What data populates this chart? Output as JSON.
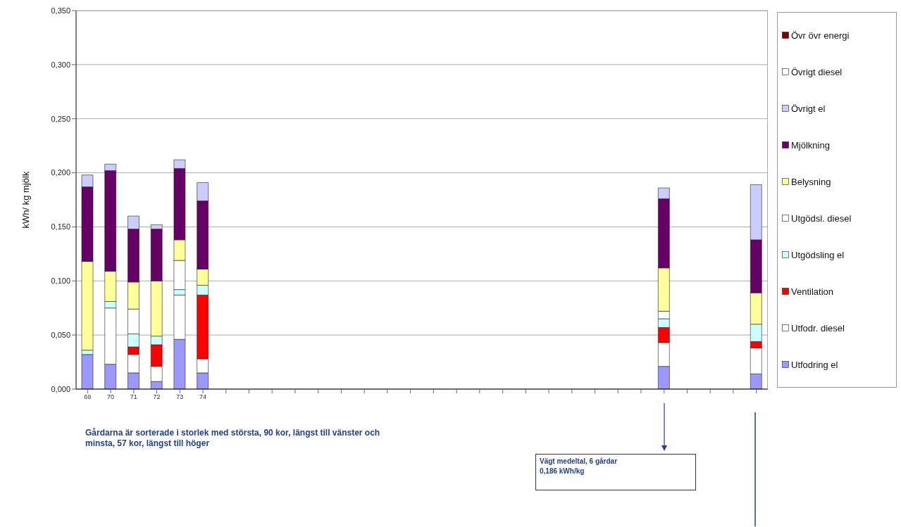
{
  "chart_data": {
    "type": "bar",
    "stacked": true,
    "ylabel": "kWh/ kg mjölk",
    "categories": [
      "69",
      "70",
      "71",
      "72",
      "73",
      "74",
      null,
      null,
      null,
      null,
      null,
      null,
      null,
      null,
      null,
      null,
      null,
      null,
      null,
      null,
      null,
      null,
      null,
      null,
      null,
      null,
      null,
      null,
      null,
      null
    ],
    "series": [
      {
        "name": "Utfodring el",
        "color": "#9999ff",
        "values": [
          0.032,
          0.023,
          0.015,
          0.007,
          0.046,
          0.015,
          null,
          null,
          null,
          null,
          null,
          null,
          null,
          null,
          null,
          null,
          null,
          null,
          null,
          null,
          null,
          null,
          null,
          null,
          null,
          0.021,
          null,
          null,
          null,
          0.014
        ]
      },
      {
        "name": "Utfodr. diesel",
        "color": "#ffffff",
        "values": [
          0,
          0.052,
          0.017,
          0.014,
          0.041,
          0.013,
          null,
          null,
          null,
          null,
          null,
          null,
          null,
          null,
          null,
          null,
          null,
          null,
          null,
          null,
          null,
          null,
          null,
          null,
          null,
          0.022,
          null,
          null,
          null,
          0.024
        ]
      },
      {
        "name": "Ventilation",
        "color": "#ff0000",
        "values": [
          0,
          0,
          0.007,
          0.02,
          0,
          0.059,
          null,
          null,
          null,
          null,
          null,
          null,
          null,
          null,
          null,
          null,
          null,
          null,
          null,
          null,
          null,
          null,
          null,
          null,
          null,
          0.014,
          null,
          null,
          null,
          0.006
        ]
      },
      {
        "name": "Utgödsling el",
        "color": "#ccffff",
        "values": [
          0.004,
          0.006,
          0.012,
          0.008,
          0.005,
          0.009,
          null,
          null,
          null,
          null,
          null,
          null,
          null,
          null,
          null,
          null,
          null,
          null,
          null,
          null,
          null,
          null,
          null,
          null,
          null,
          0.008,
          null,
          null,
          null,
          0.016
        ]
      },
      {
        "name": "Utgödsl. diesel",
        "color": "#ffffff",
        "values": [
          0,
          0,
          0.023,
          0,
          0.027,
          0,
          null,
          null,
          null,
          null,
          null,
          null,
          null,
          null,
          null,
          null,
          null,
          null,
          null,
          null,
          null,
          null,
          null,
          null,
          null,
          0.007,
          null,
          null,
          null,
          0
        ]
      },
      {
        "name": "Belysning",
        "color": "#ffff99",
        "values": [
          0.082,
          0.028,
          0.025,
          0.051,
          0.019,
          0.015,
          null,
          null,
          null,
          null,
          null,
          null,
          null,
          null,
          null,
          null,
          null,
          null,
          null,
          null,
          null,
          null,
          null,
          null,
          null,
          0.04,
          null,
          null,
          null,
          0.029
        ]
      },
      {
        "name": "Mjölkning",
        "color": "#660066",
        "values": [
          0.069,
          0.093,
          0.049,
          0.048,
          0.066,
          0.063,
          null,
          null,
          null,
          null,
          null,
          null,
          null,
          null,
          null,
          null,
          null,
          null,
          null,
          null,
          null,
          null,
          null,
          null,
          null,
          0.064,
          null,
          null,
          null,
          0.049
        ]
      },
      {
        "name": "Övrigt el",
        "color": "#ccccff",
        "values": [
          0.011,
          0.006,
          0.012,
          0.004,
          0.008,
          0.017,
          null,
          null,
          null,
          null,
          null,
          null,
          null,
          null,
          null,
          null,
          null,
          null,
          null,
          null,
          null,
          null,
          null,
          null,
          null,
          0.01,
          null,
          null,
          null,
          0.051
        ]
      },
      {
        "name": "Övrigt diesel",
        "color": "#ffffff",
        "values": [
          0,
          0,
          0,
          0,
          0,
          0,
          null,
          null,
          null,
          null,
          null,
          null,
          null,
          null,
          null,
          null,
          null,
          null,
          null,
          null,
          null,
          null,
          null,
          null,
          null,
          0,
          null,
          null,
          null,
          0
        ]
      },
      {
        "name": "Övr övr energi",
        "color": "#800000",
        "values": [
          0,
          0,
          0,
          0,
          0,
          0,
          null,
          null,
          null,
          null,
          null,
          null,
          null,
          null,
          null,
          null,
          null,
          null,
          null,
          null,
          null,
          null,
          null,
          null,
          null,
          0,
          null,
          null,
          null,
          0
        ]
      }
    ],
    "ylim": [
      0,
      0.35
    ],
    "yticks": [
      {
        "value": 0,
        "label": "0,000"
      },
      {
        "value": 0.05,
        "label": "0,050"
      },
      {
        "value": 0.1,
        "label": "0,100"
      },
      {
        "value": 0.15,
        "label": "0,150"
      },
      {
        "value": 0.2,
        "label": "0,200"
      },
      {
        "value": 0.25,
        "label": "0,250"
      },
      {
        "value": 0.3,
        "label": "0,300"
      },
      {
        "value": 0.35,
        "label": "0,350"
      }
    ],
    "grid": "y",
    "legend": "right",
    "annotations": [
      "Gårdarna är sorterade i storlek med största, 90 kor, längst till vänster och minsta, 57  kor, längst till höger",
      "Vägt medeltal, 6 gårdar\n0,186 kWh/kg"
    ]
  }
}
